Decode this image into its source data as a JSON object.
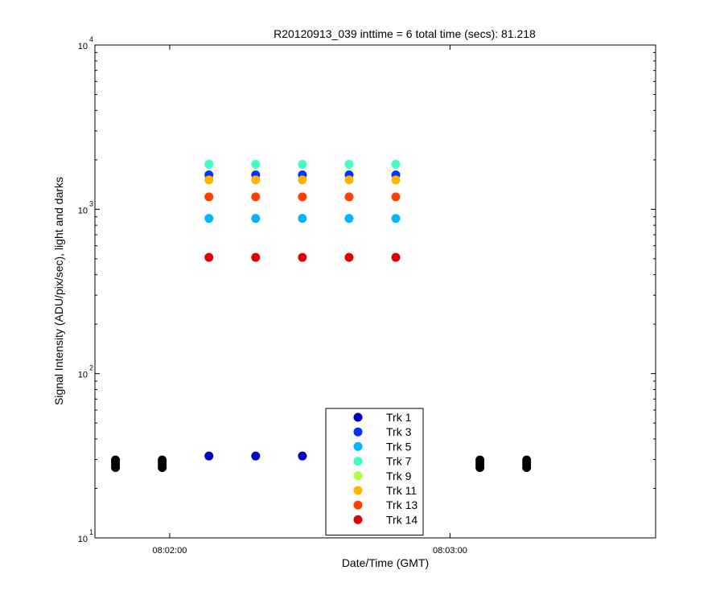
{
  "chart_data": {
    "type": "scatter",
    "title": "R20120913_039 inttime = 6 total time (secs): 81.218",
    "xlabel": "Date/Time (GMT)",
    "ylabel": "Signal Intensity (ADU/pix/sec), light and darks",
    "x_unit": "seconds after 08:00:00 GMT",
    "x_range": [
      104,
      224
    ],
    "y_scale": "log",
    "y_range": [
      10,
      10000
    ],
    "y_ticks": [
      {
        "base": "10",
        "exp": "1",
        "value": 10
      },
      {
        "base": "10",
        "exp": "2",
        "value": 100
      },
      {
        "base": "10",
        "exp": "3",
        "value": 1000
      },
      {
        "base": "10",
        "exp": "4",
        "value": 10000
      }
    ],
    "x_ticks": [
      {
        "label": "08:02:00",
        "value": 120
      },
      {
        "label": "08:03:00",
        "value": 180
      }
    ],
    "legend_position": "bottom-center",
    "series": [
      {
        "name": "Trk 1",
        "color": "#0000c0",
        "x": [
          128.4,
          138.4,
          148.4
        ],
        "y": [
          31.5,
          31.5,
          31.5
        ]
      },
      {
        "name": "Trk 3",
        "color": "#0033ff",
        "x": [
          128.4,
          138.4,
          148.4,
          158.4,
          168.4
        ],
        "y": [
          1620,
          1620,
          1620,
          1620,
          1620
        ]
      },
      {
        "name": "Trk 5",
        "color": "#00b4ff",
        "x": [
          128.4,
          138.4,
          148.4,
          158.4,
          168.4
        ],
        "y": [
          880,
          880,
          880,
          880,
          880
        ]
      },
      {
        "name": "Trk 7",
        "color": "#40ffc0",
        "x": [
          128.4,
          138.4,
          148.4,
          158.4,
          168.4
        ],
        "y": [
          1880,
          1880,
          1880,
          1880,
          1880
        ]
      },
      {
        "name": "Trk 9",
        "color": "#b0ff40",
        "x": [],
        "y": []
      },
      {
        "name": "Trk 11",
        "color": "#ffb400",
        "x": [
          128.4,
          138.4,
          148.4,
          158.4,
          168.4
        ],
        "y": [
          1510,
          1510,
          1510,
          1510,
          1510
        ]
      },
      {
        "name": "Trk 13",
        "color": "#ff4000",
        "x": [
          128.4,
          138.4,
          148.4,
          158.4,
          168.4
        ],
        "y": [
          1190,
          1190,
          1190,
          1190,
          1190
        ]
      },
      {
        "name": "Trk 14",
        "color": "#e00000",
        "x": [
          128.4,
          138.4,
          148.4,
          158.4,
          168.4
        ],
        "y": [
          510,
          510,
          510,
          510,
          510
        ]
      }
    ],
    "darks": {
      "color": "#000000",
      "x": [
        108.4,
        108.4,
        108.4,
        108.4,
        118.4,
        118.4,
        118.4,
        118.4,
        186.4,
        186.4,
        186.4,
        186.4,
        196.4,
        196.4,
        196.4,
        196.4
      ],
      "y": [
        26.8,
        27.8,
        28.8,
        29.8,
        26.8,
        27.8,
        28.8,
        29.8,
        26.8,
        27.8,
        28.8,
        29.8,
        26.8,
        27.8,
        28.8,
        29.8
      ]
    }
  }
}
